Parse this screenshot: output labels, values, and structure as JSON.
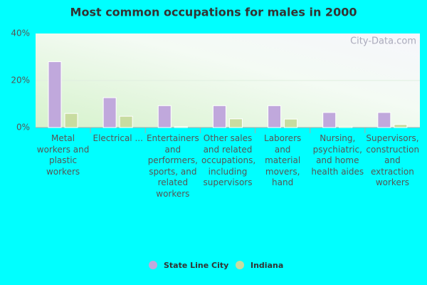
{
  "chart_data": {
    "type": "bar",
    "title": "Most common occupations for males in 2000",
    "watermark": "City-Data.com",
    "categories": [
      "Metal workers and plastic workers",
      "Electrical ...",
      "Entertainers and performers, sports, and related workers",
      "Other sales and related occupations, including supervisors",
      "Laborers and material movers, hand",
      "Nursing, psychiatric, and home health aides",
      "Supervisors, construction and extraction workers"
    ],
    "series": [
      {
        "name": "State Line City",
        "color": "#c0a8dc",
        "values": [
          28,
          12.7,
          9.3,
          9.3,
          9.3,
          6.4,
          6.4
        ]
      },
      {
        "name": "Indiana",
        "color": "#c8dca0",
        "values": [
          6,
          4.8,
          0.4,
          3.7,
          3.6,
          0.5,
          1.3
        ]
      }
    ],
    "ylim": [
      0,
      40
    ],
    "yticks": [
      {
        "value": 0,
        "label": "0%"
      },
      {
        "value": 20,
        "label": "20%"
      },
      {
        "value": 40,
        "label": "40%"
      }
    ],
    "grid": true,
    "legend": "bottom"
  }
}
